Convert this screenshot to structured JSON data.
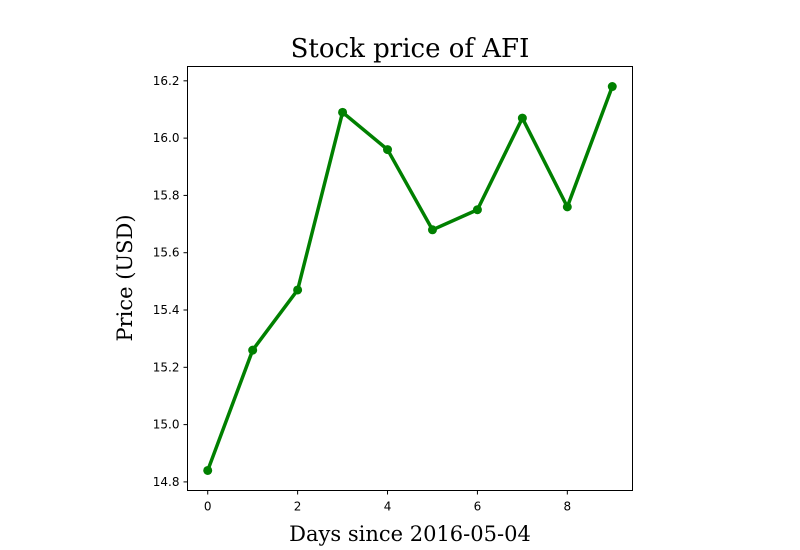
{
  "chart_data": {
    "type": "line",
    "title": "Stock price of AFI",
    "xlabel": "Days since 2016-05-04",
    "ylabel": "Price (USD)",
    "x": [
      0,
      1,
      2,
      3,
      4,
      5,
      6,
      7,
      8,
      9
    ],
    "series": [
      {
        "values": [
          14.84,
          15.26,
          15.47,
          16.09,
          15.96,
          15.68,
          15.75,
          16.07,
          15.76,
          16.18
        ],
        "color": "#008000"
      }
    ],
    "xlim": [
      -0.45,
      9.45
    ],
    "ylim": [
      14.77,
      16.25
    ],
    "xticks": [
      0,
      2,
      4,
      6,
      8
    ],
    "xtick_labels": [
      "0",
      "2",
      "4",
      "6",
      "8"
    ],
    "yticks": [
      14.8,
      15.0,
      15.2,
      15.4,
      15.6,
      15.8,
      16.0,
      16.2
    ],
    "ytick_labels": [
      "14.8",
      "15.0",
      "15.2",
      "15.4",
      "15.6",
      "15.8",
      "16.0",
      "16.2"
    ],
    "grid": false,
    "markers": true
  }
}
